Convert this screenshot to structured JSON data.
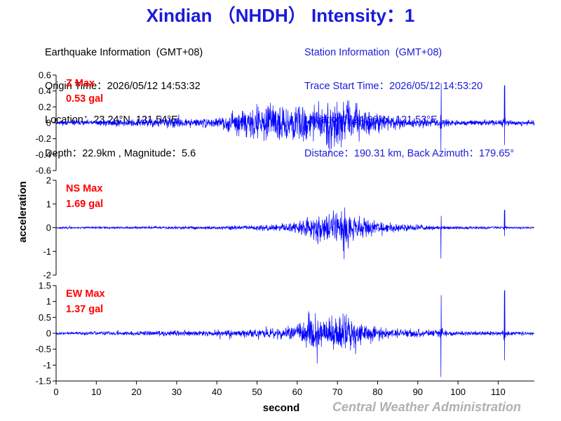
{
  "title": "Xindian （NHDH） Intensity：1",
  "earthquake_info": {
    "heading": "Earthquake Information  (GMT+08)",
    "origin_time": "Origin Time：2026/05/12 14:53:32",
    "location": "Location：23.24°N, 121.54°E",
    "depth_magnitude": "Depth：22.9km , Magnitude：5.6"
  },
  "station_info": {
    "heading": "Station Information  (GMT+08)",
    "trace_start": "Trace Start Time：2026/05/12 14:53:20",
    "location": "Location：24.96°N, 121.53°E",
    "distance": "Distance：190.31 km, Back Azimuth：179.65°"
  },
  "agency": "Central Weather Administration",
  "colors": {
    "title": "#1a1adb",
    "trace": "#0000ff",
    "max_label": "#ff0000",
    "station_info": "#1a1adb",
    "agency": "#b0b0b0"
  },
  "chart_data": {
    "type": "line",
    "xlabel": "second",
    "ylabel": "acceleration",
    "xlim": [
      0,
      119
    ],
    "xticks": [
      0,
      10,
      20,
      30,
      40,
      50,
      60,
      70,
      80,
      90,
      100,
      110
    ],
    "xtick_labels": [
      "0",
      "10",
      "20",
      "30",
      "40",
      "50",
      "60",
      "70",
      "80",
      "90",
      "100",
      "110"
    ],
    "grid": false,
    "panels": [
      {
        "name": "Z",
        "max_label": "Z Max",
        "max_value": "0.53 gal",
        "ylim": [
          -0.6,
          0.6
        ],
        "yticks": [
          -0.6,
          -0.4,
          -0.2,
          0,
          0.2,
          0.4,
          0.6
        ],
        "ytick_labels": [
          "-0.6",
          "-0.4",
          "-0.2",
          "0",
          "0.2",
          "0.4",
          "0.6"
        ],
        "envelope": {
          "t": [
            0,
            10,
            20,
            28,
            35,
            40,
            44,
            46,
            50,
            55,
            60,
            65,
            70,
            72,
            75,
            80,
            85,
            90,
            95,
            100,
            105,
            110,
            115,
            119
          ],
          "amp": [
            0.04,
            0.05,
            0.07,
            0.09,
            0.07,
            0.08,
            0.15,
            0.22,
            0.26,
            0.3,
            0.3,
            0.32,
            0.4,
            0.42,
            0.28,
            0.15,
            0.1,
            0.08,
            0.07,
            0.05,
            0.05,
            0.05,
            0.05,
            0.04
          ]
        },
        "spikes": [
          {
            "t": 95.8,
            "up": 0.5,
            "down": -0.35
          },
          {
            "t": 111.6,
            "up": 0.47,
            "down": -0.28
          }
        ],
        "noise_seed": 11
      },
      {
        "name": "NS",
        "max_label": "NS Max",
        "max_value": "1.69 gal",
        "ylim": [
          -2,
          2
        ],
        "yticks": [
          -2,
          -1,
          0,
          1,
          2
        ],
        "ytick_labels": [
          "-2",
          "-1",
          "0",
          "1",
          "2"
        ],
        "envelope": {
          "t": [
            0,
            20,
            30,
            40,
            48,
            55,
            60,
            63,
            66,
            70,
            72,
            75,
            80,
            85,
            90,
            95,
            100,
            110,
            119
          ],
          "amp": [
            0.06,
            0.07,
            0.09,
            0.1,
            0.14,
            0.22,
            0.35,
            0.7,
            0.9,
            1.05,
            1.1,
            0.65,
            0.35,
            0.25,
            0.18,
            0.12,
            0.08,
            0.07,
            0.06
          ]
        },
        "spikes": [
          {
            "t": 95.8,
            "up": 0.5,
            "down": -1.3
          },
          {
            "t": 111.6,
            "up": 0.75,
            "down": -0.35
          }
        ],
        "noise_seed": 23
      },
      {
        "name": "EW",
        "max_label": "EW Max",
        "max_value": "1.37 gal",
        "ylim": [
          -1.5,
          1.5
        ],
        "yticks": [
          -1.5,
          -1,
          -0.5,
          0,
          0.5,
          1,
          1.5
        ],
        "ytick_labels": [
          "-1.5",
          "-1",
          "-0.5",
          "0",
          "0.5",
          "1",
          "1.5"
        ],
        "envelope": {
          "t": [
            0,
            10,
            20,
            28,
            35,
            45,
            52,
            58,
            62,
            64,
            68,
            72,
            76,
            80,
            85,
            90,
            95,
            100,
            110,
            119
          ],
          "amp": [
            0.06,
            0.08,
            0.1,
            0.12,
            0.12,
            0.16,
            0.2,
            0.28,
            0.6,
            0.85,
            0.75,
            0.8,
            0.45,
            0.3,
            0.22,
            0.18,
            0.14,
            0.1,
            0.09,
            0.07
          ]
        },
        "spikes": [
          {
            "t": 95.8,
            "up": 1.2,
            "down": -1.37
          },
          {
            "t": 111.6,
            "up": 1.35,
            "down": -0.85
          }
        ],
        "noise_seed": 37
      }
    ]
  }
}
